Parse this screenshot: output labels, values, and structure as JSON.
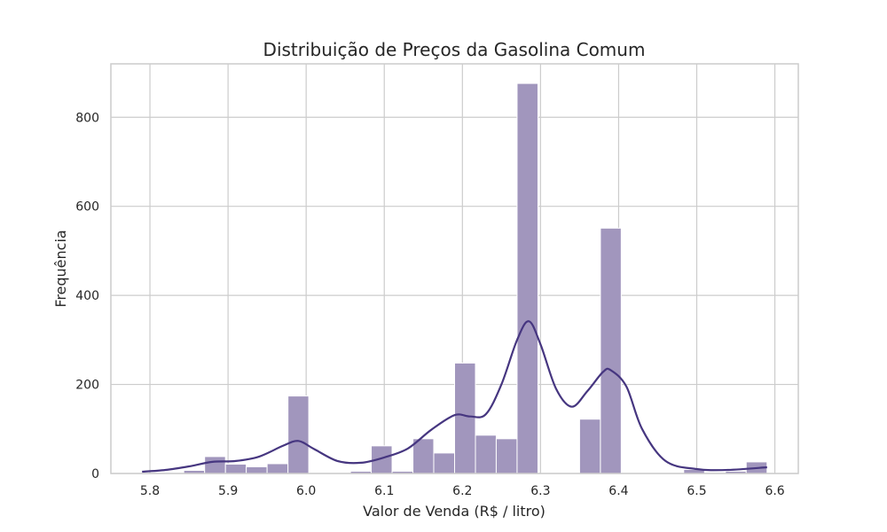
{
  "chart_data": {
    "type": "bar",
    "title": "Distribuição de Preços da Gasolina Comum",
    "xlabel": "Valor de Venda (R$ / litro)",
    "ylabel": "Frequência",
    "xlim": [
      5.75,
      6.63
    ],
    "ylim": [
      0,
      920
    ],
    "xticks": [
      "5.8",
      "5.9",
      "6.0",
      "6.1",
      "6.2",
      "6.3",
      "6.4",
      "6.5",
      "6.6"
    ],
    "yticks": [
      "0",
      "200",
      "400",
      "600",
      "800"
    ],
    "grid": true,
    "colors": {
      "bar": "#a196bd",
      "kde": "#463680"
    },
    "bins": [
      {
        "x0": 5.79,
        "x1": 5.8167,
        "count": 0
      },
      {
        "x0": 5.8167,
        "x1": 5.8433,
        "count": 0
      },
      {
        "x0": 5.8433,
        "x1": 5.87,
        "count": 7
      },
      {
        "x0": 5.87,
        "x1": 5.8967,
        "count": 38
      },
      {
        "x0": 5.8967,
        "x1": 5.9233,
        "count": 21
      },
      {
        "x0": 5.9233,
        "x1": 5.95,
        "count": 15
      },
      {
        "x0": 5.95,
        "x1": 5.9767,
        "count": 22
      },
      {
        "x0": 5.9767,
        "x1": 6.0033,
        "count": 174
      },
      {
        "x0": 6.0033,
        "x1": 6.03,
        "count": 0
      },
      {
        "x0": 6.03,
        "x1": 6.0567,
        "count": 0
      },
      {
        "x0": 6.0567,
        "x1": 6.0833,
        "count": 5
      },
      {
        "x0": 6.0833,
        "x1": 6.11,
        "count": 62
      },
      {
        "x0": 6.11,
        "x1": 6.1367,
        "count": 5
      },
      {
        "x0": 6.1367,
        "x1": 6.1633,
        "count": 78
      },
      {
        "x0": 6.1633,
        "x1": 6.19,
        "count": 46
      },
      {
        "x0": 6.19,
        "x1": 6.2167,
        "count": 248
      },
      {
        "x0": 6.2167,
        "x1": 6.2433,
        "count": 86
      },
      {
        "x0": 6.2433,
        "x1": 6.27,
        "count": 78
      },
      {
        "x0": 6.27,
        "x1": 6.2967,
        "count": 876
      },
      {
        "x0": 6.2967,
        "x1": 6.3233,
        "count": 0
      },
      {
        "x0": 6.3233,
        "x1": 6.35,
        "count": 0
      },
      {
        "x0": 6.35,
        "x1": 6.3767,
        "count": 122
      },
      {
        "x0": 6.3767,
        "x1": 6.4033,
        "count": 551
      },
      {
        "x0": 6.4033,
        "x1": 6.43,
        "count": 0
      },
      {
        "x0": 6.43,
        "x1": 6.4567,
        "count": 0
      },
      {
        "x0": 6.4567,
        "x1": 6.4833,
        "count": 0
      },
      {
        "x0": 6.4833,
        "x1": 6.51,
        "count": 9
      },
      {
        "x0": 6.51,
        "x1": 6.5367,
        "count": 0
      },
      {
        "x0": 6.5367,
        "x1": 6.5633,
        "count": 5
      },
      {
        "x0": 6.5633,
        "x1": 6.59,
        "count": 26
      }
    ],
    "kde": {
      "x": [
        5.79,
        5.82,
        5.85,
        5.88,
        5.91,
        5.94,
        5.97,
        5.99,
        6.01,
        6.04,
        6.07,
        6.1,
        6.13,
        6.16,
        6.19,
        6.21,
        6.23,
        6.25,
        6.27,
        6.285,
        6.3,
        6.32,
        6.34,
        6.36,
        6.38,
        6.39,
        6.41,
        6.43,
        6.46,
        6.5,
        6.54,
        6.59
      ],
      "y": [
        4,
        8,
        16,
        26,
        28,
        38,
        62,
        73,
        55,
        28,
        24,
        36,
        56,
        98,
        131,
        128,
        133,
        200,
        300,
        342,
        290,
        190,
        150,
        185,
        228,
        232,
        195,
        100,
        28,
        10,
        8,
        14
      ]
    }
  }
}
